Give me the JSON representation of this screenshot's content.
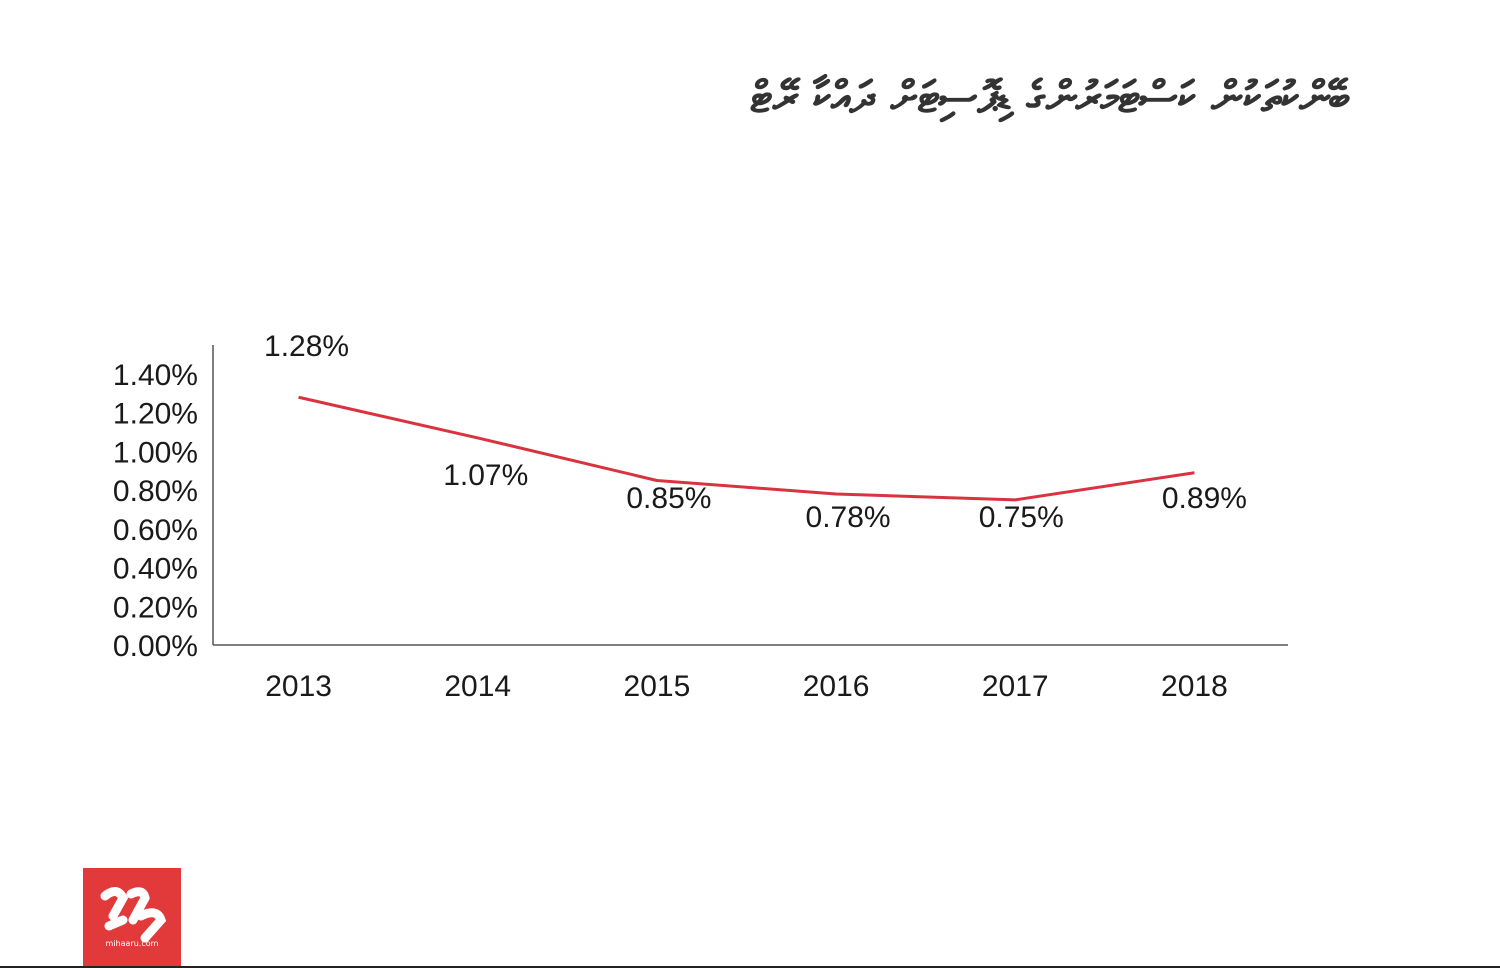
{
  "title": "ބޭންކުތަކުން ކަސްޓަމަރުންގެ ޑިޕޮސިޓަށް ދައްކާ ރޭޓް",
  "logo": {
    "text": "mihaaru.com",
    "color": "#e23a3a"
  },
  "chart_data": {
    "type": "line",
    "categories": [
      "2013",
      "2014",
      "2015",
      "2016",
      "2017",
      "2018"
    ],
    "values": [
      1.28,
      1.07,
      0.85,
      0.78,
      0.75,
      0.89
    ],
    "data_labels": [
      "1.28%",
      "1.07%",
      "0.85%",
      "0.78%",
      "0.75%",
      "0.89%"
    ],
    "yticks": [
      "0.00%",
      "0.20%",
      "0.40%",
      "0.60%",
      "0.80%",
      "1.00%",
      "1.20%",
      "1.40%"
    ],
    "ylim": [
      0,
      1.55
    ],
    "grid": false,
    "line_color": "#d9333f"
  }
}
